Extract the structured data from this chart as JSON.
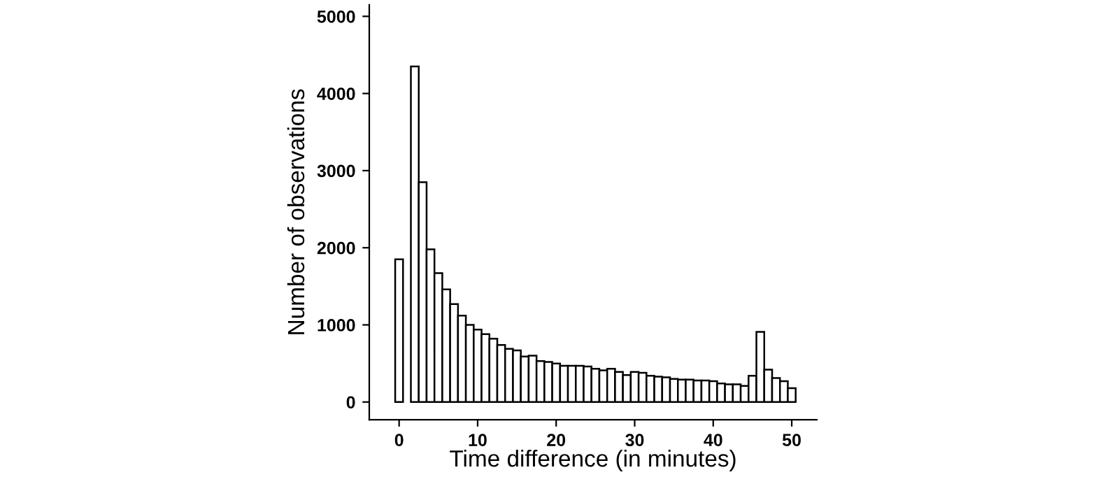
{
  "chart_data": {
    "type": "histogram",
    "xlabel": "Time difference (in minutes)",
    "ylabel": "Number of observations",
    "bins": [
      -0.5,
      0.5,
      1.5,
      2.5,
      3.5,
      4.5,
      5.5,
      6.5,
      7.5,
      8.5,
      9.5,
      10.5,
      11.5,
      12.5,
      13.5,
      14.5,
      15.5,
      16.5,
      17.5,
      18.5,
      19.5,
      20.5,
      21.5,
      22.5,
      23.5,
      24.5,
      25.5,
      26.5,
      27.5,
      28.5,
      29.5,
      30.5,
      31.5,
      32.5,
      33.5,
      34.5,
      35.5,
      36.5,
      37.5,
      38.5,
      39.5,
      40.5,
      41.5,
      42.5,
      43.5,
      44.5,
      45.5,
      46.5,
      47.5,
      48.5,
      49.5,
      50.5
    ],
    "values": [
      1850,
      0,
      4350,
      2850,
      1980,
      1670,
      1460,
      1270,
      1120,
      1000,
      940,
      880,
      820,
      740,
      690,
      670,
      590,
      600,
      530,
      520,
      500,
      470,
      470,
      470,
      460,
      430,
      410,
      430,
      390,
      350,
      390,
      380,
      340,
      330,
      320,
      300,
      290,
      290,
      280,
      280,
      270,
      240,
      230,
      230,
      210,
      340,
      910,
      420,
      310,
      270,
      180
    ],
    "color": "#ffffff",
    "xlim": [
      -3.8,
      53.2
    ],
    "ylim": [
      -230,
      5150
    ],
    "xticks": [
      0,
      10,
      20,
      30,
      40,
      50
    ],
    "yticks": [
      0,
      1000,
      2000,
      3000,
      4000,
      5000
    ],
    "grid": false
  }
}
